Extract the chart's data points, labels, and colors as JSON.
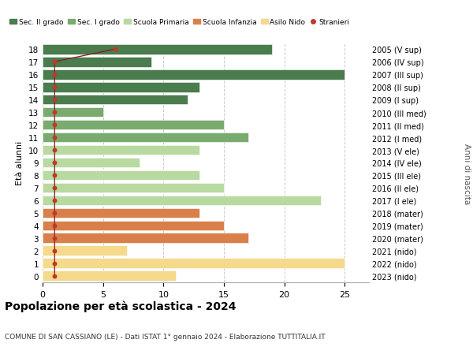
{
  "ages": [
    18,
    17,
    16,
    15,
    14,
    13,
    12,
    11,
    10,
    9,
    8,
    7,
    6,
    5,
    4,
    3,
    2,
    1,
    0
  ],
  "years_labels": [
    "2005 (V sup)",
    "2006 (IV sup)",
    "2007 (III sup)",
    "2008 (II sup)",
    "2009 (I sup)",
    "2010 (III med)",
    "2011 (II med)",
    "2012 (I med)",
    "2013 (V ele)",
    "2014 (IV ele)",
    "2015 (III ele)",
    "2016 (II ele)",
    "2017 (I ele)",
    "2018 (mater)",
    "2019 (mater)",
    "2020 (mater)",
    "2021 (nido)",
    "2022 (nido)",
    "2023 (nido)"
  ],
  "bar_values": [
    19,
    9,
    25,
    13,
    12,
    5,
    15,
    17,
    13,
    8,
    13,
    15,
    23,
    13,
    15,
    17,
    7,
    25,
    11
  ],
  "bar_colors": [
    "#4a7c4e",
    "#4a7c4e",
    "#4a7c4e",
    "#4a7c4e",
    "#4a7c4e",
    "#7aab6e",
    "#7aab6e",
    "#7aab6e",
    "#b8d9a0",
    "#b8d9a0",
    "#b8d9a0",
    "#b8d9a0",
    "#b8d9a0",
    "#d9804a",
    "#d9804a",
    "#d9804a",
    "#f5d98c",
    "#f5d98c",
    "#f5d98c"
  ],
  "stranieri_x": [
    6,
    1,
    1,
    1,
    1,
    1,
    1,
    1,
    1,
    1,
    1,
    1,
    1,
    1,
    1,
    1,
    1,
    1,
    1
  ],
  "legend_labels": [
    "Sec. II grado",
    "Sec. I grado",
    "Scuola Primaria",
    "Scuola Infanzia",
    "Asilo Nido",
    "Stranieri"
  ],
  "legend_colors": [
    "#4a7c4e",
    "#7aab6e",
    "#b8d9a0",
    "#d9804a",
    "#f5d98c",
    "#c0392b"
  ],
  "ylabel_left": "Età alunni",
  "ylabel_right": "Anni di nascita",
  "xlim": [
    0,
    27
  ],
  "xticks": [
    0,
    5,
    10,
    15,
    20,
    25
  ],
  "title": "Popolazione per età scolastica - 2024",
  "subtitle": "COMUNE DI SAN CASSIANO (LE) - Dati ISTAT 1° gennaio 2024 - Elaborazione TUTTITALIA.IT",
  "bg_color": "#ffffff",
  "grid_color": "#cccccc",
  "stranieri_line_color": "#8b1a1a",
  "stranieri_dot_color": "#c0392b"
}
